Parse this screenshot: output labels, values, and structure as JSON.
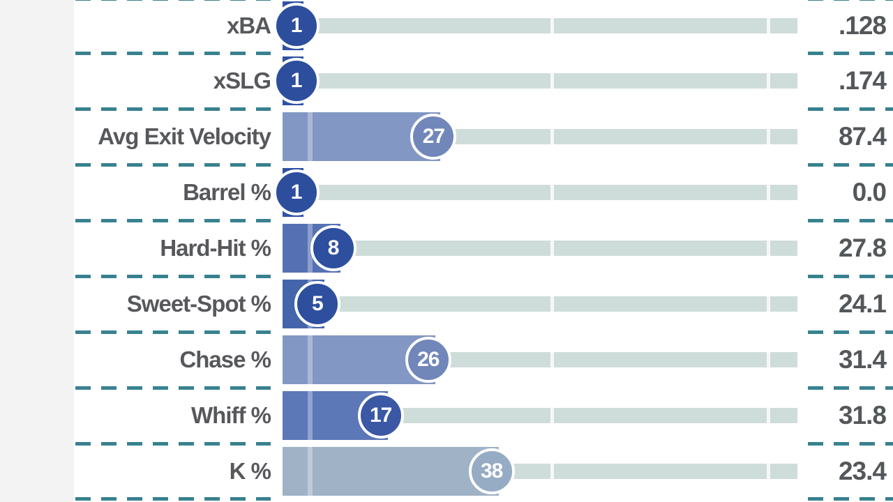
{
  "chart_data": {
    "type": "bar",
    "orientation": "horizontal",
    "description": "Statcast percentile rankings chart: each row shows a stat label, a horizontal percentile bar (scale 0-100) capped by a circular bubble containing the percentile, and the raw stat value at right",
    "scale": {
      "min": 0,
      "max": 100
    },
    "categories": [
      "xBA",
      "xSLG",
      "Avg Exit Velocity",
      "Barrel %",
      "Hard-Hit %",
      "Sweet-Spot %",
      "Chase %",
      "Whiff %",
      "K %"
    ],
    "percentiles": [
      1,
      1,
      27,
      1,
      8,
      5,
      26,
      17,
      38
    ],
    "values": [
      ".128",
      ".174",
      "87.4",
      "0.0",
      "27.8",
      "24.1",
      "31.4",
      "31.8",
      "23.4"
    ],
    "rows": [
      {
        "label": "xBA",
        "percentile": 1,
        "value": ".128",
        "bar_color": "#3052a1",
        "bubble_color": "#2c4e9d"
      },
      {
        "label": "xSLG",
        "percentile": 1,
        "value": ".174",
        "bar_color": "#3052a1",
        "bubble_color": "#2c4e9d"
      },
      {
        "label": "Avg Exit Velocity",
        "percentile": 27,
        "value": "87.4",
        "bar_color": "#8297c3",
        "bubble_color": "#7187ba"
      },
      {
        "label": "Barrel %",
        "percentile": 1,
        "value": "0.0",
        "bar_color": "#3052a1",
        "bubble_color": "#2c4e9d"
      },
      {
        "label": "Hard-Hit %",
        "percentile": 8,
        "value": "27.8",
        "bar_color": "#5671b3",
        "bubble_color": "#2d4f9e"
      },
      {
        "label": "Sweet-Spot %",
        "percentile": 5,
        "value": "24.1",
        "bar_color": "#4565ab",
        "bubble_color": "#2d4f9e"
      },
      {
        "label": "Chase %",
        "percentile": 26,
        "value": "31.4",
        "bar_color": "#8297c3",
        "bubble_color": "#7187ba"
      },
      {
        "label": "Whiff %",
        "percentile": 17,
        "value": "31.8",
        "bar_color": "#5d78b7",
        "bubble_color": "#3b58a4"
      },
      {
        "label": "K %",
        "percentile": 38,
        "value": "23.4",
        "bar_color": "#9fb2c6",
        "bubble_color": "#96abc4"
      }
    ],
    "colors": {
      "track": "#cedcda",
      "separator_dash": "#38818f",
      "label_text": "#57585b",
      "value_text": "#54575a",
      "bubble_text": "#ffffff",
      "background": "#ffffff"
    },
    "layout_hints": {
      "grid": "dashed teal separator lines between rows, left and right segments only",
      "track_tick_positions_pct": [
        52,
        94
      ]
    }
  }
}
